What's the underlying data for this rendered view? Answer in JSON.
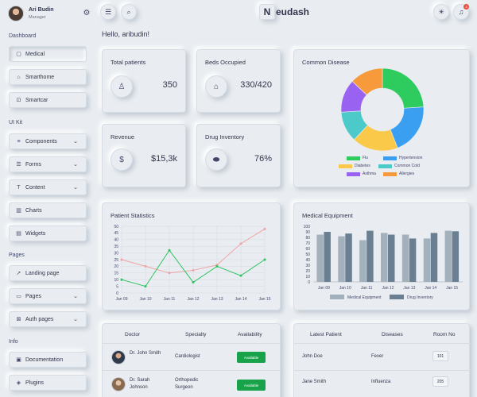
{
  "profile": {
    "name": "Ari Budin",
    "role": "Manager"
  },
  "sidebar": {
    "sections": [
      {
        "label": "Dashboard",
        "items": [
          {
            "label": "Medical",
            "icon": "square-icon",
            "glyph": "▢",
            "active": true,
            "has_dropdown": false
          },
          {
            "label": "Smarthome",
            "icon": "home-icon",
            "glyph": "⌂",
            "has_dropdown": false
          },
          {
            "label": "Smartcar",
            "icon": "car-icon",
            "glyph": "⊡",
            "has_dropdown": false
          }
        ]
      },
      {
        "label": "UI Kit",
        "items": [
          {
            "label": "Components",
            "icon": "layers-icon",
            "glyph": "≡",
            "has_dropdown": true
          },
          {
            "label": "Forms",
            "icon": "list-icon",
            "glyph": "☰",
            "has_dropdown": true
          },
          {
            "label": "Content",
            "icon": "text-icon",
            "glyph": "T",
            "has_dropdown": true
          },
          {
            "label": "Charts",
            "icon": "chart-icon",
            "glyph": "▥",
            "has_dropdown": false
          },
          {
            "label": "Widgets",
            "icon": "grid-icon",
            "glyph": "▤",
            "has_dropdown": false
          }
        ]
      },
      {
        "label": "Pages",
        "items": [
          {
            "label": "Landing page",
            "icon": "rocket-icon",
            "glyph": "➚",
            "has_dropdown": false
          },
          {
            "label": "Pages",
            "icon": "file-icon",
            "glyph": "▭",
            "has_dropdown": true
          },
          {
            "label": "Auth pages",
            "icon": "lock-icon",
            "glyph": "⊠",
            "has_dropdown": true
          }
        ]
      },
      {
        "label": "Info",
        "items": [
          {
            "label": "Documentation",
            "icon": "book-icon",
            "glyph": "▣",
            "has_dropdown": false
          },
          {
            "label": "Plugins",
            "icon": "plug-icon",
            "glyph": "◈",
            "has_dropdown": false
          }
        ]
      }
    ]
  },
  "topbar": {
    "brand_mark": "N",
    "brand_text": "eudash",
    "notification_count": "3"
  },
  "greeting": "Hello, aribudin!",
  "stats": [
    {
      "title": "Total patients",
      "value": "350",
      "icon": "user-icon",
      "glyph": "♙"
    },
    {
      "title": "Beds Occupied",
      "value": "330/420",
      "icon": "hospital-icon",
      "glyph": "⌂"
    },
    {
      "title": "Revenue",
      "value": "$15,3k",
      "icon": "dollar-icon",
      "glyph": "$"
    },
    {
      "title": "Drug Inventory",
      "value": "76%",
      "icon": "pill-icon",
      "glyph": "⬬"
    }
  ],
  "common_disease": {
    "title": "Common Disease",
    "legend": [
      "Flu",
      "Hypertension",
      "Diabetes",
      "Common Cold",
      "Asthma",
      "Allergies"
    ]
  },
  "patient_statistics": {
    "title": "Patient Statistics"
  },
  "medical_equipment": {
    "title": "Medical Equipment"
  },
  "colors": {
    "flu": "#2ecc5f",
    "hypertension": "#3a9ff0",
    "diabetes": "#fbc94a",
    "common_cold": "#4cc9c9",
    "asthma": "#9a62f0",
    "allergies": "#f79a3b",
    "line_red": "#f0a3a3",
    "line_green": "#2bc35e",
    "bar_light": "#a3b1bd",
    "bar_dark": "#6a7f91",
    "available": "#18a34a"
  },
  "chart_data": [
    {
      "type": "pie",
      "title": "Common Disease",
      "categories": [
        "Flu",
        "Hypertension",
        "Diabetes",
        "Common Cold",
        "Asthma",
        "Allergies"
      ],
      "values": [
        24,
        20,
        18,
        12,
        13,
        13
      ],
      "donut": true
    },
    {
      "type": "line",
      "title": "Patient Statistics",
      "categories": [
        "Jan 09",
        "Jan 10",
        "Jan 11",
        "Jan 12",
        "Jan 13",
        "Jan 14",
        "Jan 15"
      ],
      "ylim": [
        0,
        50
      ],
      "yticks": [
        0,
        5,
        10,
        15,
        20,
        25,
        30,
        35,
        40,
        45,
        50
      ],
      "series": [
        {
          "values": [
            25,
            20,
            15,
            17,
            21,
            37,
            48
          ]
        },
        {
          "values": [
            10,
            5,
            32,
            8,
            20,
            13,
            25
          ]
        }
      ],
      "grid": true
    },
    {
      "type": "bar",
      "title": "Medical Equipment",
      "categories": [
        "Jan 09",
        "Jan 10",
        "Jan 11",
        "Jan 12",
        "Jan 13",
        "Jan 14",
        "Jan 15"
      ],
      "ylim": [
        0,
        100
      ],
      "yticks": [
        0,
        10,
        20,
        30,
        40,
        50,
        60,
        70,
        80,
        90,
        100
      ],
      "series": [
        {
          "name": "Medical Equipment",
          "values": [
            85,
            82,
            75,
            88,
            85,
            78,
            92
          ]
        },
        {
          "name": "Drug Inventory",
          "values": [
            90,
            87,
            92,
            85,
            78,
            88,
            91
          ]
        }
      ],
      "legend_position": "bottom",
      "grid": false
    }
  ],
  "doctors_table": {
    "headers": [
      "Doctor",
      "Specialty",
      "Availability"
    ],
    "rows": [
      {
        "name": "Dr. John Smith",
        "specialty": "Cardiologist",
        "availability": "Available"
      },
      {
        "name": "Dr. Sarah Johnson",
        "specialty": "Orthopedic Surgeon",
        "availability": "Available"
      }
    ]
  },
  "patients_table": {
    "headers": [
      "Latest Patient",
      "Diseases",
      "Room No"
    ],
    "rows": [
      {
        "name": "John Doe",
        "disease": "Fever",
        "room": "101"
      },
      {
        "name": "Jane Smith",
        "disease": "Influenza",
        "room": "205"
      }
    ]
  }
}
